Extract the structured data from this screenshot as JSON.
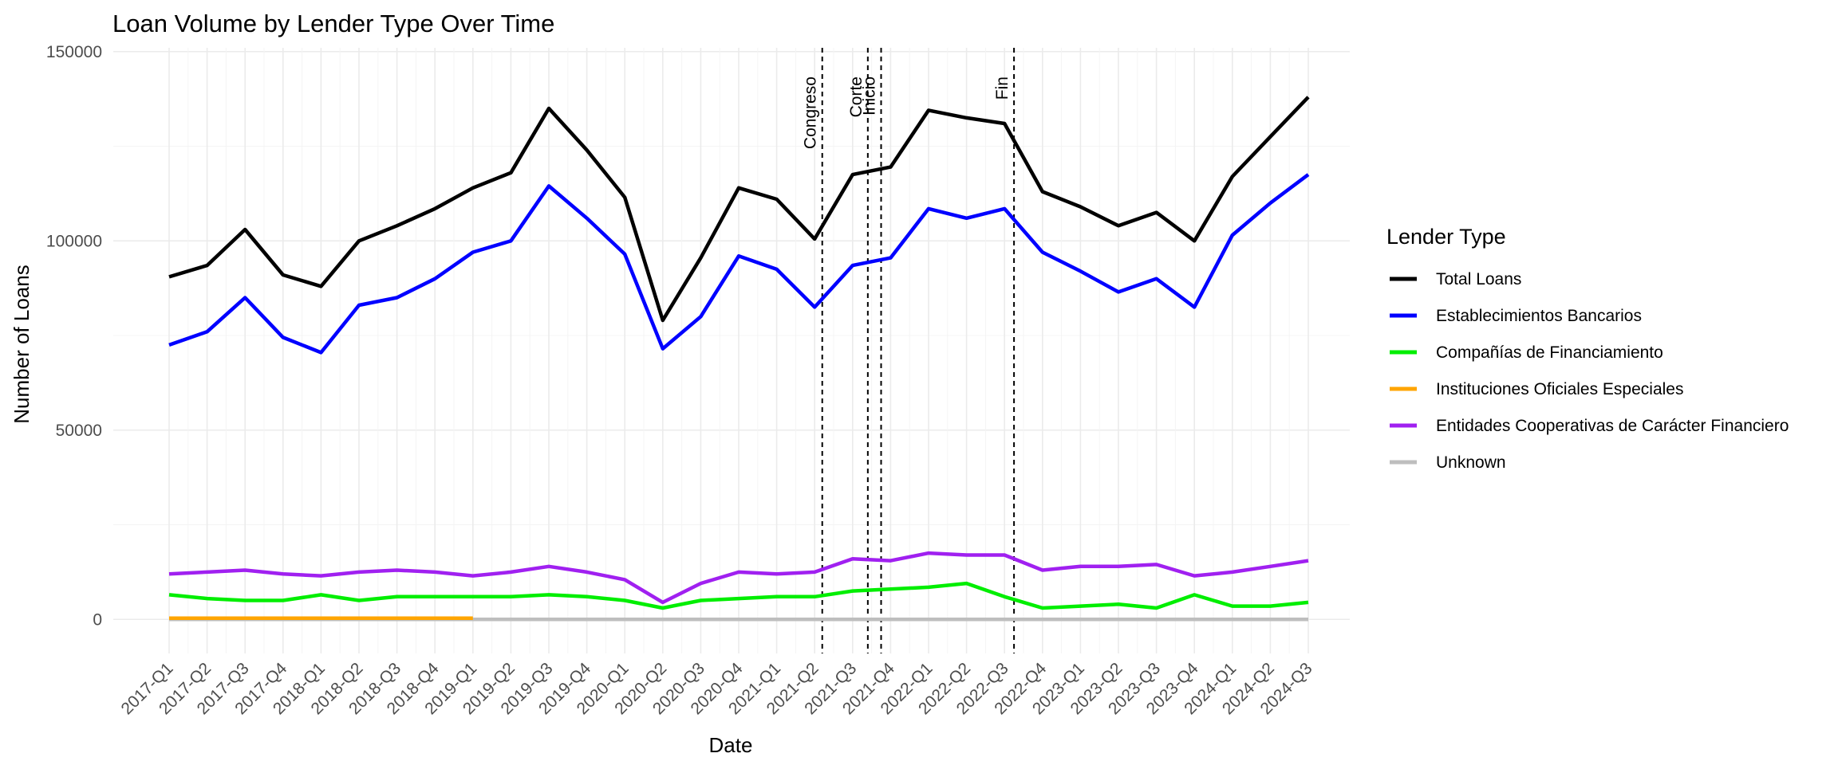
{
  "chart_data": {
    "type": "line",
    "title": "Loan Volume by Lender Type Over Time",
    "xlabel": "Date",
    "ylabel": "Number of Loans",
    "ylim": [
      -9000,
      151000
    ],
    "yticks": [
      0,
      50000,
      100000,
      150000
    ],
    "grid": true,
    "legend": {
      "title": "Lender Type",
      "position": "right"
    },
    "categories": [
      "2017-Q1",
      "2017-Q2",
      "2017-Q3",
      "2017-Q4",
      "2018-Q1",
      "2018-Q2",
      "2018-Q3",
      "2018-Q4",
      "2019-Q1",
      "2019-Q2",
      "2019-Q3",
      "2019-Q4",
      "2020-Q1",
      "2020-Q2",
      "2020-Q3",
      "2020-Q4",
      "2021-Q1",
      "2021-Q2",
      "2021-Q3",
      "2021-Q4",
      "2022-Q1",
      "2022-Q2",
      "2022-Q3",
      "2022-Q4",
      "2023-Q1",
      "2023-Q2",
      "2023-Q3",
      "2023-Q4",
      "2024-Q1",
      "2024-Q2",
      "2024-Q3"
    ],
    "series": [
      {
        "name": "Total Loans",
        "color": "#000000",
        "values": [
          90500,
          93500,
          103000,
          91000,
          88000,
          100000,
          104000,
          108500,
          114000,
          118000,
          135000,
          124000,
          111500,
          79000,
          95500,
          114000,
          111000,
          100500,
          117500,
          119500,
          134500,
          132500,
          131000,
          113000,
          109000,
          104000,
          107500,
          100000,
          117000,
          127500,
          138000
        ]
      },
      {
        "name": "Establecimientos Bancarios",
        "color": "#0000ff",
        "values": [
          72500,
          76000,
          85000,
          74500,
          70500,
          83000,
          85000,
          90000,
          97000,
          100000,
          114500,
          106000,
          96500,
          71500,
          80000,
          96000,
          92500,
          82500,
          93500,
          95500,
          108500,
          106000,
          108500,
          97000,
          92000,
          86500,
          90000,
          82500,
          101500,
          110000,
          117500
        ]
      },
      {
        "name": "Compañías de Financiamiento",
        "color": "#00ee00",
        "values": [
          6500,
          5500,
          5000,
          5000,
          6500,
          5000,
          6000,
          6000,
          6000,
          6000,
          6500,
          6000,
          5000,
          3000,
          5000,
          5500,
          6000,
          6000,
          7500,
          8000,
          8500,
          9500,
          6000,
          3000,
          3500,
          4000,
          3000,
          6500,
          3500,
          3500,
          4500
        ]
      },
      {
        "name": "Instituciones Oficiales Especiales",
        "color": "#ffa500",
        "values": [
          300,
          300,
          300,
          300,
          300,
          300,
          300,
          300,
          300,
          null,
          null,
          null,
          null,
          null,
          null,
          null,
          null,
          null,
          null,
          null,
          null,
          null,
          null,
          null,
          null,
          null,
          null,
          null,
          null,
          null,
          null
        ]
      },
      {
        "name": "Entidades Cooperativas de Carácter Financiero",
        "color": "#a020f0",
        "values": [
          12000,
          12500,
          13000,
          12000,
          11500,
          12500,
          13000,
          12500,
          11500,
          12500,
          14000,
          12500,
          10500,
          4500,
          9500,
          12500,
          12000,
          12500,
          16000,
          15500,
          17500,
          17000,
          17000,
          13000,
          14000,
          14000,
          14500,
          11500,
          12500,
          14000,
          15500
        ]
      },
      {
        "name": "Unknown",
        "color": "#bebebe",
        "values": [
          0,
          0,
          0,
          0,
          0,
          0,
          0,
          0,
          0,
          0,
          0,
          0,
          0,
          0,
          0,
          0,
          0,
          0,
          0,
          0,
          0,
          0,
          0,
          0,
          0,
          0,
          0,
          0,
          0,
          0,
          0
        ]
      }
    ],
    "annotations": [
      {
        "label": "Congreso",
        "x": 17.2
      },
      {
        "label": "Corte",
        "x": 18.4
      },
      {
        "label": "Inicio",
        "x": 18.75
      },
      {
        "label": "Fin",
        "x": 22.25
      }
    ]
  }
}
